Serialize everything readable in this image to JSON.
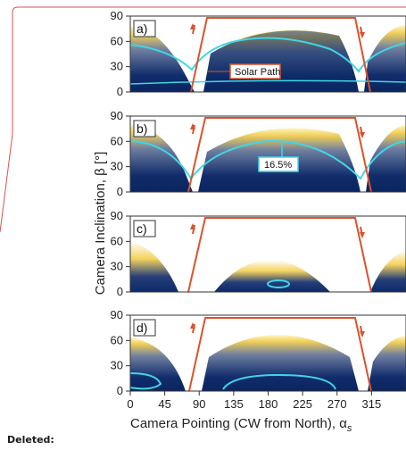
{
  "document": {
    "deleted_label": "Deleted:"
  },
  "figure": {
    "panels": [
      {
        "id": "a",
        "label": "a)",
        "callout": "Solar Path"
      },
      {
        "id": "b",
        "label": "b)",
        "callout": "16.5%"
      },
      {
        "id": "c",
        "label": "c)",
        "callout": ""
      },
      {
        "id": "d",
        "label": "d)",
        "callout": ""
      }
    ],
    "y_ticks": [
      "0",
      "30",
      "60",
      "90"
    ],
    "x_ticks": [
      "0",
      "45",
      "90",
      "135",
      "180",
      "225",
      "270",
      "315"
    ],
    "y_axis_label": "Camera Inclination, β [°]",
    "x_axis_label": "Camera Pointing (CW from North), α",
    "x_axis_label_subscript": "s",
    "colors": {
      "solar_path": "#d9532c",
      "contour": "#3fd6e6",
      "high": "#0a2a6b",
      "low": "#fff7c8",
      "comment_border": "#d9534f"
    }
  }
}
